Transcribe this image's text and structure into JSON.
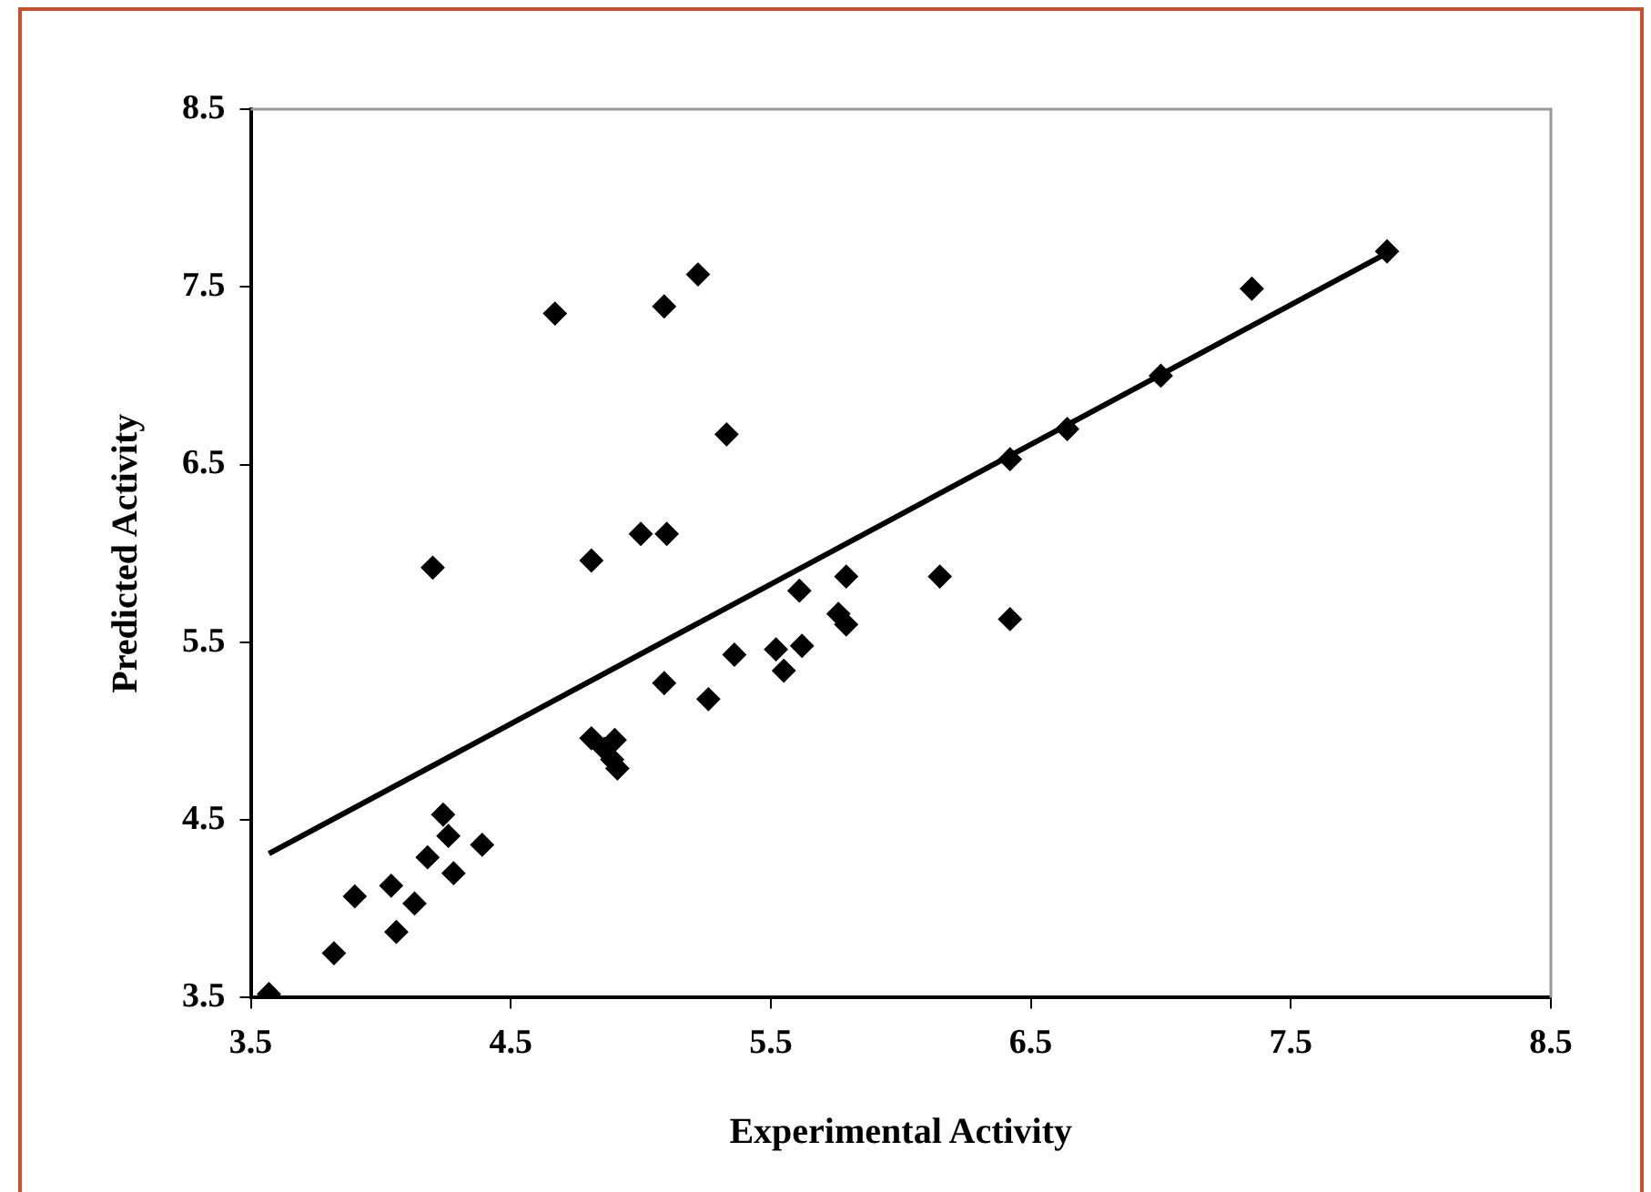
{
  "chart_data": {
    "type": "scatter",
    "xlabel": "Experimental Activity",
    "ylabel": "Predicted Activity",
    "xlim": [
      3.5,
      8.5
    ],
    "xticks": [
      3.5,
      4.5,
      5.5,
      6.5,
      7.5,
      8.5
    ],
    "ylim": [
      3.5,
      8.5
    ],
    "yticks": [
      3.5,
      4.5,
      5.5,
      6.5,
      7.5,
      8.5
    ],
    "grid": false,
    "legend": false,
    "marker": "diamond",
    "series": [
      {
        "color": "#000000",
        "x": [
          3.57,
          3.82,
          3.9,
          4.04,
          4.06,
          4.13,
          4.18,
          4.24,
          4.26,
          4.28,
          4.39,
          4.2,
          4.67,
          4.81,
          4.81,
          4.86,
          4.9,
          4.89,
          4.91,
          5.0,
          5.1,
          5.09,
          5.22,
          5.09,
          5.26,
          5.33,
          5.36,
          5.52,
          5.55,
          5.61,
          5.62,
          5.76,
          5.79,
          5.79,
          6.15,
          6.42,
          6.42,
          6.64,
          7.0,
          7.35,
          7.87
        ],
        "values": [
          3.52,
          3.75,
          4.07,
          4.13,
          3.87,
          4.03,
          4.29,
          4.53,
          4.41,
          4.2,
          4.36,
          5.92,
          7.35,
          5.96,
          4.96,
          4.9,
          4.95,
          4.84,
          4.79,
          6.11,
          6.11,
          7.39,
          7.57,
          5.27,
          5.18,
          6.67,
          5.43,
          5.46,
          5.34,
          5.79,
          5.48,
          5.66,
          5.6,
          5.87,
          5.87,
          5.63,
          6.53,
          6.7,
          7.0,
          7.49,
          7.7
        ]
      },
      {
        "type": "line",
        "color": "#000000",
        "marker": "none",
        "line_style": "solid",
        "x": [
          3.57,
          7.87
        ],
        "values": [
          4.31,
          7.69
        ]
      }
    ]
  }
}
